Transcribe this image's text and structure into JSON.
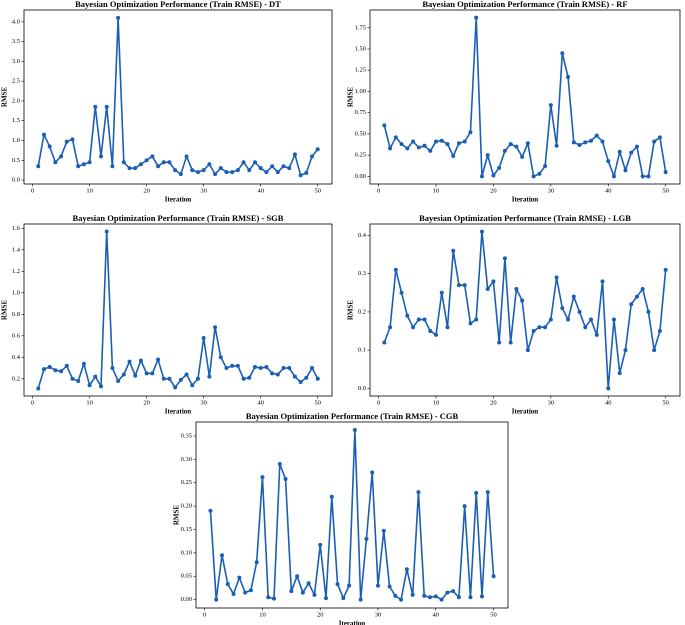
{
  "chart_data": [
    {
      "type": "line",
      "title": "Bayesian Optimization Performance (Train RMSE) - DT",
      "xlabel": "Iteration",
      "ylabel": "RMSE",
      "color": "#1a5fb4",
      "x": [
        1,
        2,
        3,
        4,
        5,
        6,
        7,
        8,
        9,
        10,
        11,
        12,
        13,
        14,
        15,
        16,
        17,
        18,
        19,
        20,
        21,
        22,
        23,
        24,
        25,
        26,
        27,
        28,
        29,
        30,
        31,
        32,
        33,
        34,
        35,
        36,
        37,
        38,
        39,
        40,
        41,
        42,
        43,
        44,
        45,
        46,
        47,
        48,
        49,
        50
      ],
      "values": [
        0.35,
        1.15,
        0.85,
        0.45,
        0.6,
        0.97,
        1.03,
        0.35,
        0.4,
        0.45,
        1.85,
        0.6,
        1.85,
        0.35,
        4.1,
        0.45,
        0.3,
        0.3,
        0.4,
        0.5,
        0.6,
        0.35,
        0.45,
        0.45,
        0.25,
        0.15,
        0.6,
        0.25,
        0.2,
        0.25,
        0.4,
        0.15,
        0.3,
        0.2,
        0.2,
        0.25,
        0.45,
        0.25,
        0.45,
        0.3,
        0.2,
        0.35,
        0.2,
        0.35,
        0.3,
        0.65,
        0.12,
        0.18,
        0.6,
        0.78
      ],
      "xlim": [
        -1.5,
        52.5
      ],
      "xticks": [
        0,
        10,
        20,
        30,
        40,
        50
      ],
      "ylim": [
        -0.1,
        4.3
      ],
      "yticks": [
        {
          "value": 0,
          "label": "0.0"
        },
        0.5,
        {
          "value": 1,
          "label": "1.0"
        },
        1.5,
        {
          "value": 2,
          "label": "2.0"
        },
        2.5,
        {
          "value": 3,
          "label": "3.0"
        },
        3.5,
        {
          "value": 4,
          "label": "4.0"
        }
      ]
    },
    {
      "type": "line",
      "title": "Bayesian Optimization Performance (Train RMSE) - RF",
      "xlabel": "Iteration",
      "ylabel": "RMSE",
      "color": "#1a5fb4",
      "x": [
        1,
        2,
        3,
        4,
        5,
        6,
        7,
        8,
        9,
        10,
        11,
        12,
        13,
        14,
        15,
        16,
        17,
        18,
        19,
        20,
        21,
        22,
        23,
        24,
        25,
        26,
        27,
        28,
        29,
        30,
        31,
        32,
        33,
        34,
        35,
        36,
        37,
        38,
        39,
        40,
        41,
        42,
        43,
        44,
        45,
        46,
        47,
        48,
        49,
        50
      ],
      "values": [
        0.6,
        0.33,
        0.46,
        0.38,
        0.33,
        0.41,
        0.34,
        0.36,
        0.3,
        0.41,
        0.42,
        0.38,
        0.24,
        0.39,
        0.41,
        0.52,
        1.87,
        0.0,
        0.25,
        0.01,
        0.1,
        0.3,
        0.38,
        0.35,
        0.23,
        0.39,
        0.0,
        0.03,
        0.12,
        0.84,
        0.36,
        1.45,
        1.17,
        0.4,
        0.37,
        0.4,
        0.42,
        0.48,
        0.41,
        0.18,
        0.0,
        0.29,
        0.07,
        0.28,
        0.35,
        0.0,
        0.0,
        0.41,
        0.46,
        0.05
      ],
      "xlim": [
        -1.5,
        52.5
      ],
      "xticks": [
        0,
        10,
        20,
        30,
        40,
        50
      ],
      "ylim": [
        -0.09,
        1.96
      ],
      "yticks": [
        {
          "value": 0,
          "label": "0.00"
        },
        {
          "value": 0.25,
          "label": "0.25"
        },
        {
          "value": 0.5,
          "label": "0.50"
        },
        {
          "value": 0.75,
          "label": "0.75"
        },
        {
          "value": 1,
          "label": "1.00"
        },
        {
          "value": 1.25,
          "label": "1.25"
        },
        {
          "value": 1.5,
          "label": "1.50"
        },
        {
          "value": 1.75,
          "label": "1.75"
        }
      ]
    },
    {
      "type": "line",
      "title": "Bayesian Optimization Performance (Train RMSE) - SGB",
      "xlabel": "Iteration",
      "ylabel": "RMSE",
      "color": "#1a5fb4",
      "x": [
        1,
        2,
        3,
        4,
        5,
        6,
        7,
        8,
        9,
        10,
        11,
        12,
        13,
        14,
        15,
        16,
        17,
        18,
        19,
        20,
        21,
        22,
        23,
        24,
        25,
        26,
        27,
        28,
        29,
        30,
        31,
        32,
        33,
        34,
        35,
        36,
        37,
        38,
        39,
        40,
        41,
        42,
        43,
        44,
        45,
        46,
        47,
        48,
        49,
        50
      ],
      "values": [
        0.11,
        0.29,
        0.31,
        0.28,
        0.27,
        0.32,
        0.2,
        0.18,
        0.34,
        0.14,
        0.22,
        0.13,
        1.57,
        0.3,
        0.18,
        0.24,
        0.36,
        0.23,
        0.37,
        0.25,
        0.25,
        0.38,
        0.2,
        0.2,
        0.12,
        0.19,
        0.24,
        0.14,
        0.2,
        0.58,
        0.22,
        0.68,
        0.4,
        0.3,
        0.32,
        0.32,
        0.2,
        0.21,
        0.31,
        0.3,
        0.31,
        0.25,
        0.24,
        0.3,
        0.3,
        0.22,
        0.17,
        0.21,
        0.3,
        0.2
      ],
      "xlim": [
        -1.5,
        52.5
      ],
      "xticks": [
        0,
        10,
        20,
        30,
        40,
        50
      ],
      "ylim": [
        0.04,
        1.64
      ],
      "yticks": [
        0.2,
        0.4,
        0.6,
        0.8,
        {
          "value": 1,
          "label": "1.0"
        },
        1.2,
        1.4,
        1.6
      ]
    },
    {
      "type": "line",
      "title": "Bayesian Optimization Performance (Train RMSE) - LGB",
      "xlabel": "Iteration",
      "ylabel": "RMSE",
      "color": "#1a5fb4",
      "x": [
        1,
        2,
        3,
        4,
        5,
        6,
        7,
        8,
        9,
        10,
        11,
        12,
        13,
        14,
        15,
        16,
        17,
        18,
        19,
        20,
        21,
        22,
        23,
        24,
        25,
        26,
        27,
        28,
        29,
        30,
        31,
        32,
        33,
        34,
        35,
        36,
        37,
        38,
        39,
        40,
        41,
        42,
        43,
        44,
        45,
        46,
        47,
        48,
        49,
        50
      ],
      "values": [
        0.12,
        0.16,
        0.31,
        0.25,
        0.19,
        0.16,
        0.18,
        0.18,
        0.15,
        0.14,
        0.25,
        0.16,
        0.36,
        0.27,
        0.27,
        0.17,
        0.18,
        0.41,
        0.26,
        0.28,
        0.12,
        0.34,
        0.12,
        0.26,
        0.23,
        0.1,
        0.15,
        0.16,
        0.16,
        0.18,
        0.29,
        0.21,
        0.18,
        0.24,
        0.2,
        0.16,
        0.18,
        0.14,
        0.28,
        0.0,
        0.18,
        0.04,
        0.1,
        0.22,
        0.24,
        0.26,
        0.2,
        0.1,
        0.15,
        0.31
      ],
      "xlim": [
        -1.5,
        52.5
      ],
      "xticks": [
        0,
        10,
        20,
        30,
        40,
        50
      ],
      "ylim": [
        -0.02,
        0.43
      ],
      "yticks": [
        {
          "value": 0,
          "label": "0.0"
        },
        0.1,
        0.2,
        0.3,
        0.4
      ]
    },
    {
      "type": "line",
      "title": "Bayesian Optimization Performance (Train RMSE) - CGB",
      "xlabel": "Iteration",
      "ylabel": "RMSE",
      "color": "#1a5fb4",
      "x": [
        1,
        2,
        3,
        4,
        5,
        6,
        7,
        8,
        9,
        10,
        11,
        12,
        13,
        14,
        15,
        16,
        17,
        18,
        19,
        20,
        21,
        22,
        23,
        24,
        25,
        26,
        27,
        28,
        29,
        30,
        31,
        32,
        33,
        34,
        35,
        36,
        37,
        38,
        39,
        40,
        41,
        42,
        43,
        44,
        45,
        46,
        47,
        48,
        49,
        50
      ],
      "values": [
        0.19,
        0.0,
        0.095,
        0.033,
        0.012,
        0.047,
        0.015,
        0.02,
        0.08,
        0.262,
        0.005,
        0.002,
        0.29,
        0.258,
        0.018,
        0.05,
        0.015,
        0.035,
        0.01,
        0.117,
        0.003,
        0.22,
        0.033,
        0.003,
        0.03,
        0.363,
        0.0,
        0.13,
        0.272,
        0.03,
        0.147,
        0.028,
        0.008,
        0.0,
        0.065,
        0.01,
        0.23,
        0.008,
        0.005,
        0.007,
        0.0,
        0.015,
        0.018,
        0.005,
        0.2,
        0.005,
        0.228,
        0.007,
        0.23,
        0.05
      ],
      "xlim": [
        -1.5,
        52.5
      ],
      "xticks": [
        0,
        10,
        20,
        30,
        40,
        50
      ],
      "ylim": [
        -0.018,
        0.38
      ],
      "yticks": [
        {
          "value": 0,
          "label": "0.00"
        },
        0.05,
        {
          "value": 0.1,
          "label": "0.10"
        },
        0.15,
        {
          "value": 0.2,
          "label": "0.20"
        },
        0.25,
        {
          "value": 0.3,
          "label": "0.30"
        },
        0.35
      ]
    }
  ]
}
